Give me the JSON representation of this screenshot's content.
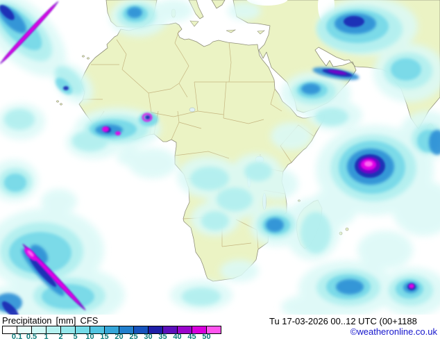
{
  "legend": {
    "title": "Precipitation",
    "unit": "[mm]",
    "model": "CFS",
    "values": [
      "0.1",
      "0.5",
      "1",
      "2",
      "5",
      "10",
      "15",
      "20",
      "25",
      "30",
      "35",
      "40",
      "45",
      "50"
    ],
    "colors": [
      "#ffffff",
      "#e7fdfb",
      "#d0f8f6",
      "#b4f1f0",
      "#96e8ec",
      "#74dbe8",
      "#52c5e2",
      "#35a6d9",
      "#2280cd",
      "#1653bd",
      "#1f1fa8",
      "#5c10bc",
      "#9a06cc",
      "#d800dc",
      "#ff55ee"
    ],
    "label_color": "#0b7b7b"
  },
  "footer": {
    "datetime": "Tu 17-03-2026 00..12 UTC (00+1188",
    "copyright": "©weatheronline.co.uk",
    "copyright_color": "#1414cc"
  },
  "map": {
    "land_color": "#ebf3c4",
    "ocean_color": "#ffffff",
    "coast_color": "#8f8f78",
    "border_color": "#b8a06a"
  }
}
